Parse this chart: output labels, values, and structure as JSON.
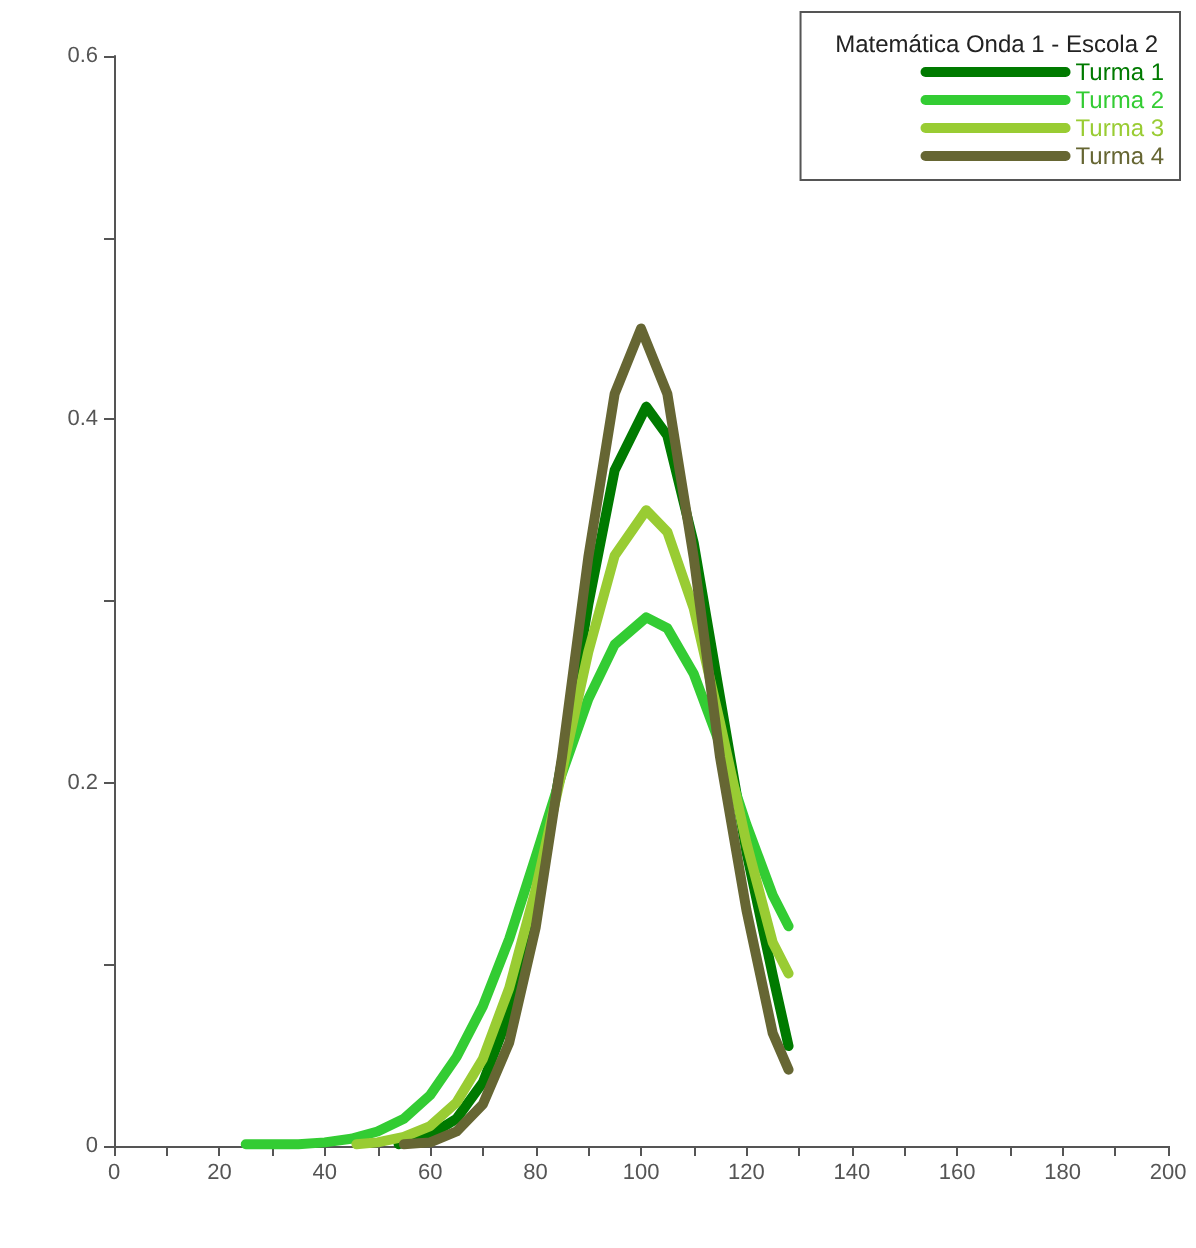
{
  "chart_data": {
    "type": "line",
    "legend_title": "Matemática Onda 1 - Escola 2",
    "legend": "top right",
    "grid": false,
    "marker": "none",
    "line_style": "solid",
    "xlim": [
      0,
      200
    ],
    "ylim": [
      0,
      0.6
    ],
    "xticks": [
      0,
      {
        "value": 10,
        "label": null
      },
      20,
      {
        "value": 30,
        "label": null
      },
      40,
      {
        "value": 50,
        "label": null
      },
      60,
      {
        "value": 70,
        "label": null
      },
      80,
      {
        "value": 90,
        "label": null
      },
      100,
      {
        "value": 110,
        "label": null
      },
      120,
      {
        "value": 130,
        "label": null
      },
      140,
      {
        "value": 150,
        "label": null
      },
      160,
      {
        "value": 170,
        "label": null
      },
      180,
      {
        "value": 190,
        "label": null
      },
      200
    ],
    "yticks": [
      0,
      {
        "value": 0.1,
        "label": null
      },
      0.2,
      {
        "value": 0.3,
        "label": null
      },
      0.4,
      {
        "value": 0.5,
        "label": null
      },
      0.6
    ],
    "series": [
      {
        "name": "Turma 1",
        "color": "#007a00",
        "x": [
          54,
          60,
          65,
          70,
          75,
          80,
          85,
          90,
          95,
          101,
          105,
          110,
          115,
          120,
          125,
          128
        ],
        "values": [
          0.001,
          0.006,
          0.015,
          0.035,
          0.073,
          0.132,
          0.212,
          0.298,
          0.372,
          0.407,
          0.391,
          0.332,
          0.247,
          0.162,
          0.094,
          0.055
        ]
      },
      {
        "name": "Turma 2",
        "color": "#33cc33",
        "x": [
          25,
          30,
          35,
          40,
          45,
          50,
          55,
          60,
          65,
          70,
          75,
          80,
          85,
          90,
          95,
          101,
          105,
          110,
          115,
          120,
          125,
          128
        ],
        "values": [
          0.001,
          0.001,
          0.001,
          0.002,
          0.004,
          0.008,
          0.015,
          0.028,
          0.049,
          0.077,
          0.114,
          0.159,
          0.205,
          0.246,
          0.276,
          0.291,
          0.285,
          0.26,
          0.221,
          0.177,
          0.138,
          0.121
        ]
      },
      {
        "name": "Turma 3",
        "color": "#99cc33",
        "x": [
          46,
          50,
          55,
          60,
          65,
          70,
          75,
          80,
          85,
          90,
          95,
          101,
          105,
          110,
          115,
          120,
          125,
          128
        ],
        "values": [
          0.001,
          0.002,
          0.005,
          0.011,
          0.024,
          0.048,
          0.087,
          0.141,
          0.206,
          0.272,
          0.325,
          0.35,
          0.338,
          0.296,
          0.233,
          0.167,
          0.112,
          0.095
        ]
      },
      {
        "name": "Turma 4",
        "color": "#666633",
        "x": [
          55,
          60,
          65,
          70,
          75,
          80,
          85,
          90,
          95,
          100,
          105,
          110,
          115,
          120,
          125,
          128
        ],
        "values": [
          0.001,
          0.002,
          0.008,
          0.023,
          0.057,
          0.12,
          0.214,
          0.324,
          0.414,
          0.45,
          0.414,
          0.324,
          0.214,
          0.13,
          0.062,
          0.042
        ]
      }
    ]
  }
}
